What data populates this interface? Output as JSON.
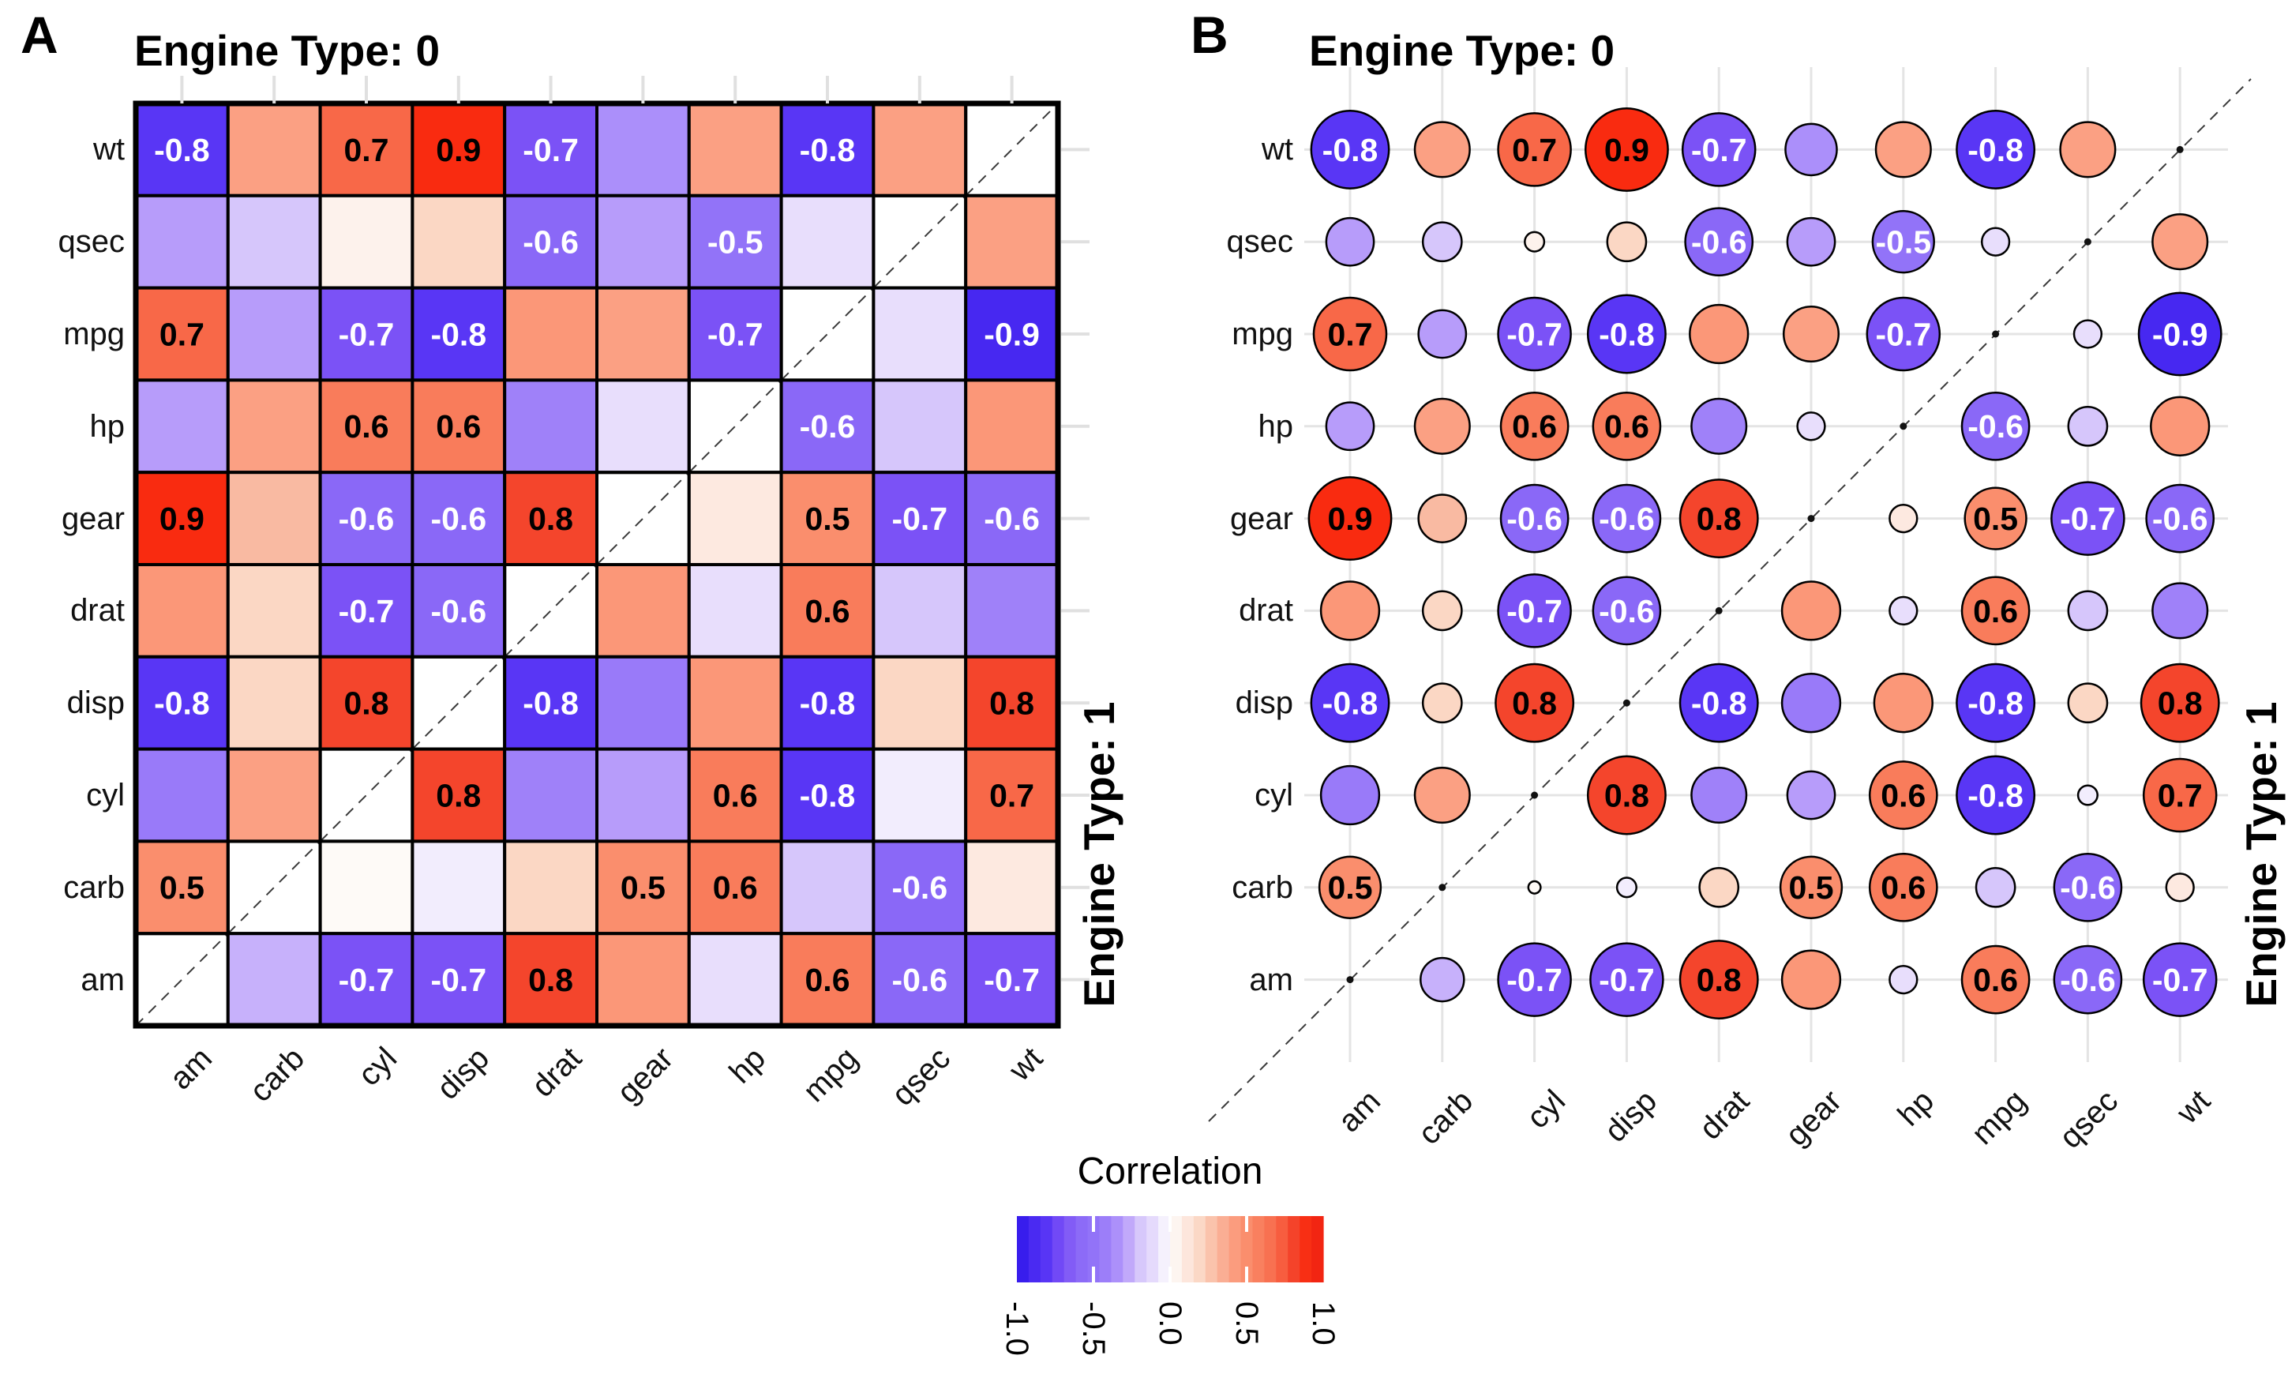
{
  "panels": {
    "a": {
      "letter": "A",
      "title": "Engine Type: 0",
      "right_label": "Engine Type: 1"
    },
    "b": {
      "letter": "B",
      "title": "Engine Type: 0",
      "right_label": "Engine Type: 1"
    }
  },
  "legend": {
    "title": "Correlation",
    "tick_labels": [
      "-1.0",
      "-0.5",
      "0.0",
      "0.5",
      "1.0"
    ]
  },
  "chart_data": {
    "type": "heatmap",
    "panel_styles": {
      "A": "filled-square correlation matrix",
      "B": "sized-circle correlation matrix"
    },
    "x_categories": [
      "am",
      "carb",
      "cyl",
      "disp",
      "drat",
      "gear",
      "hp",
      "mpg",
      "qsec",
      "wt"
    ],
    "y_categories_top_to_bottom": [
      "wt",
      "qsec",
      "mpg",
      "hp",
      "gear",
      "drat",
      "disp",
      "cyl",
      "carb",
      "am"
    ],
    "triangle_groups": {
      "upper_left_of_diagonal": "Engine Type: 0",
      "lower_right_of_diagonal": "Engine Type: 1"
    },
    "value_label_threshold": 0.5,
    "colorscale": {
      "domain": [
        -1,
        1
      ],
      "low": "#2f16eb",
      "mid": "#ffffff",
      "high": "#ee2113",
      "legend_ticks": [
        -1.0,
        -0.5,
        0.0,
        0.5,
        1.0
      ]
    },
    "matrix_rows": [
      {
        "row": "wt",
        "values": [
          -0.8,
          0.4,
          0.7,
          0.9,
          -0.7,
          -0.35,
          0.4,
          -0.8,
          0.4,
          null
        ]
      },
      {
        "row": "qsec",
        "values": [
          -0.3,
          -0.2,
          0.05,
          0.2,
          -0.6,
          -0.3,
          -0.5,
          -0.1,
          null,
          0.4
        ]
      },
      {
        "row": "mpg",
        "values": [
          0.7,
          -0.3,
          -0.7,
          -0.8,
          0.45,
          0.4,
          -0.7,
          null,
          -0.1,
          -0.9
        ]
      },
      {
        "row": "hp",
        "values": [
          -0.3,
          0.4,
          0.6,
          0.6,
          -0.4,
          -0.1,
          null,
          -0.6,
          -0.2,
          0.45
        ]
      },
      {
        "row": "gear",
        "values": [
          0.9,
          0.3,
          -0.6,
          -0.6,
          0.8,
          null,
          0.1,
          0.5,
          -0.7,
          -0.6
        ]
      },
      {
        "row": "drat",
        "values": [
          0.45,
          0.2,
          -0.7,
          -0.6,
          null,
          0.45,
          -0.1,
          0.6,
          -0.2,
          -0.4
        ]
      },
      {
        "row": "disp",
        "values": [
          -0.8,
          0.2,
          0.8,
          null,
          -0.8,
          -0.45,
          0.45,
          -0.8,
          0.2,
          0.8
        ]
      },
      {
        "row": "cyl",
        "values": [
          -0.45,
          0.4,
          null,
          0.8,
          -0.4,
          -0.3,
          0.6,
          -0.8,
          -0.05,
          0.7
        ]
      },
      {
        "row": "carb",
        "values": [
          0.5,
          null,
          0.02,
          -0.05,
          0.2,
          0.5,
          0.6,
          -0.2,
          -0.6,
          0.1
        ]
      },
      {
        "row": "am",
        "values": [
          null,
          -0.25,
          -0.7,
          -0.7,
          0.8,
          0.45,
          -0.1,
          0.6,
          -0.6,
          -0.7
        ]
      }
    ]
  }
}
